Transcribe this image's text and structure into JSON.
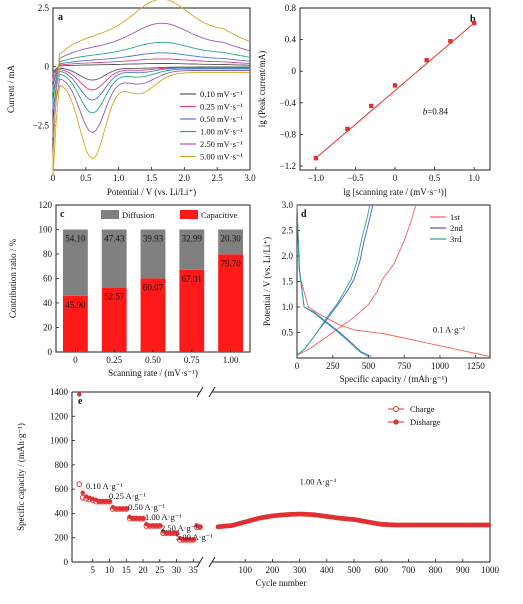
{
  "chart_data": [
    {
      "panel": "a",
      "type": "line",
      "xlabel": "Potential / V (vs. Li/Li⁺)",
      "ylabel": "Current / mA",
      "xlim": [
        0,
        3.0
      ],
      "ylim": [
        -4.4,
        2.5
      ],
      "xticks": [
        0,
        0.5,
        1.0,
        1.5,
        2.0,
        2.5,
        3.0
      ],
      "xtick_labels": [
        "0",
        "0.5",
        "1.0",
        "1.5",
        "2.0",
        "2.5",
        "3.0"
      ],
      "yticks": [
        2.5,
        0,
        -2.5
      ],
      "ytick_labels": [
        "2.5",
        "0",
        "−2.5"
      ],
      "legend_position": "lower-right",
      "series": [
        {
          "name": "0.10 mV·s⁻¹",
          "color": "#555555",
          "peak_a": 0.1,
          "peak_c": -0.55,
          "scale": 0.06
        },
        {
          "name": "0.25 mV·s⁻¹",
          "color": "#e0407a",
          "peak_a": 0.25,
          "peak_c": -0.95,
          "scale": 0.13
        },
        {
          "name": "0.50 mV·s⁻¹",
          "color": "#4a78d6",
          "peak_a": 0.45,
          "peak_c": -1.35,
          "scale": 0.22
        },
        {
          "name": "1.00 mV·s⁻¹",
          "color": "#2ca58a",
          "peak_a": 0.8,
          "peak_c": -1.85,
          "scale": 0.38
        },
        {
          "name": "2.50 mV·s⁻¹",
          "color": "#9b59b6",
          "peak_a": 1.45,
          "peak_c": -2.6,
          "scale": 0.64
        },
        {
          "name": "5.00 mV·s⁻¹",
          "color": "#d9a520",
          "peak_a": 2.25,
          "peak_c": -3.6,
          "scale": 1.0
        }
      ]
    },
    {
      "panel": "b",
      "type": "scatter",
      "xlabel": "lg [scanning rate / (mV·s⁻¹)]",
      "ylabel": "lg (Peak current/mA)",
      "xlim": [
        -1.2,
        1.2
      ],
      "ylim": [
        -1.25,
        0.8
      ],
      "xticks": [
        -1.0,
        -0.5,
        0,
        0.5,
        1.0
      ],
      "xtick_labels": [
        "−1.0",
        "−0.5",
        "0",
        "0.5",
        "1.0"
      ],
      "yticks": [
        -1.2,
        -0.8,
        -0.4,
        0,
        0.4,
        0.8
      ],
      "ytick_labels": [
        "−1.2",
        "−0.8",
        "−0.4",
        "0",
        "0.4",
        "0.8"
      ],
      "x": [
        -1.0,
        -0.6,
        -0.3,
        0.0,
        0.4,
        0.7,
        1.0
      ],
      "y": [
        -1.1,
        -0.73,
        -0.44,
        -0.18,
        0.14,
        0.38,
        0.61
      ],
      "annotation_label": "b",
      "annotation_value": "=0.84",
      "color": "#e03030"
    },
    {
      "panel": "c",
      "type": "bar",
      "xlabel": "Scanning rate / (mV·s⁻¹)",
      "ylabel": "Contribution ratio / %",
      "ylim": [
        0,
        120
      ],
      "yticks": [
        0,
        20,
        40,
        60,
        80,
        100,
        120
      ],
      "ytick_labels": [
        "0",
        "20",
        "40",
        "60",
        "80",
        "100",
        "120"
      ],
      "categories": [
        "0",
        "0.25",
        "0.50",
        "0.75",
        "1.00"
      ],
      "series": [
        {
          "name": "Capacitive",
          "color": "#ff1a1a",
          "values": [
            45.9,
            52.57,
            60.07,
            67.01,
            79.7
          ],
          "labels": [
            "45.90",
            "52.57",
            "60.07",
            "67.01",
            "79.70"
          ]
        },
        {
          "name": "Diffusion",
          "color": "#808080",
          "values": [
            54.1,
            47.43,
            39.93,
            32.99,
            20.3
          ],
          "labels": [
            "54.10",
            "47.43",
            "39.93",
            "32.99",
            "20.30"
          ]
        }
      ],
      "legend_position": "top"
    },
    {
      "panel": "d",
      "type": "line",
      "xlabel": "Specific capacity / (mAh·g⁻¹)",
      "ylabel": "Potential / V (vs. Li/Li⁺)",
      "xlim": [
        0,
        1350
      ],
      "ylim": [
        0,
        3.0
      ],
      "xticks": [
        0,
        250,
        500,
        750,
        1000,
        1250
      ],
      "xtick_labels": [
        "0",
        "250",
        "500",
        "750",
        "1000",
        "1250"
      ],
      "yticks": [
        0.5,
        1.0,
        1.5,
        2.0,
        2.5,
        3.0
      ],
      "ytick_labels": [
        "0.5",
        "1.0",
        "1.5",
        "2.0",
        "2.5",
        "3.0"
      ],
      "annotation": "0.1 A·g⁻¹",
      "legend_position": "top-right",
      "series": [
        {
          "name": "1st",
          "color": "#f06060",
          "discharge": [
            [
              0,
              3.0
            ],
            [
              20,
              1.6
            ],
            [
              80,
              1.0
            ],
            [
              180,
              0.82
            ],
            [
              300,
              0.65
            ],
            [
              400,
              0.55
            ],
            [
              600,
              0.48
            ],
            [
              900,
              0.3
            ],
            [
              1150,
              0.15
            ],
            [
              1350,
              0.03
            ]
          ],
          "charge": [
            [
              0,
              0.05
            ],
            [
              100,
              0.2
            ],
            [
              250,
              0.5
            ],
            [
              400,
              0.8
            ],
            [
              500,
              1.05
            ],
            [
              560,
              1.3
            ],
            [
              600,
              1.55
            ],
            [
              680,
              1.85
            ],
            [
              750,
              2.3
            ],
            [
              800,
              2.7
            ],
            [
              830,
              3.0
            ]
          ]
        },
        {
          "name": "2nd",
          "color": "#4a56d6",
          "discharge": [
            [
              0,
              3.0
            ],
            [
              15,
              1.8
            ],
            [
              50,
              1.0
            ],
            [
              120,
              0.9
            ],
            [
              200,
              0.72
            ],
            [
              300,
              0.5
            ],
            [
              380,
              0.3
            ],
            [
              450,
              0.12
            ],
            [
              520,
              0.03
            ]
          ],
          "charge": [
            [
              0,
              0.05
            ],
            [
              60,
              0.2
            ],
            [
              140,
              0.5
            ],
            [
              220,
              0.8
            ],
            [
              300,
              1.1
            ],
            [
              360,
              1.35
            ],
            [
              400,
              1.55
            ],
            [
              440,
              1.9
            ],
            [
              470,
              2.3
            ],
            [
              510,
              2.75
            ],
            [
              530,
              3.0
            ]
          ]
        },
        {
          "name": "3rd",
          "color": "#2ca58a",
          "discharge": [
            [
              0,
              3.0
            ],
            [
              15,
              1.75
            ],
            [
              50,
              1.0
            ],
            [
              120,
              0.88
            ],
            [
              200,
              0.7
            ],
            [
              290,
              0.5
            ],
            [
              370,
              0.3
            ],
            [
              440,
              0.12
            ],
            [
              500,
              0.03
            ]
          ],
          "charge": [
            [
              0,
              0.05
            ],
            [
              60,
              0.2
            ],
            [
              140,
              0.5
            ],
            [
              210,
              0.8
            ],
            [
              290,
              1.1
            ],
            [
              340,
              1.35
            ],
            [
              380,
              1.55
            ],
            [
              420,
              1.9
            ],
            [
              450,
              2.3
            ],
            [
              490,
              2.75
            ],
            [
              510,
              3.0
            ]
          ]
        }
      ]
    },
    {
      "panel": "e",
      "type": "scatter",
      "xlabel": "Cycle number",
      "ylabel": "Specific capacity / (mAh·g⁻¹)",
      "ylim": [
        0,
        1400
      ],
      "yticks": [
        0,
        200,
        400,
        600,
        800,
        1000,
        1200,
        1400
      ],
      "ytick_labels": [
        "0",
        "200",
        "400",
        "600",
        "800",
        "1000",
        "1200",
        "1400"
      ],
      "xticks_left": [
        5,
        10,
        15,
        20,
        25,
        30,
        35
      ],
      "xticks_right": [
        100,
        200,
        300,
        400,
        500,
        600,
        700,
        800,
        900,
        1000
      ],
      "left_xlim": [
        0,
        37
      ],
      "right_xlim": [
        0,
        1000
      ],
      "rate_labels": [
        "0.10 A·g⁻¹",
        "0.25 A·g⁻¹",
        "0.50 A·g⁻¹",
        "1.00 A·g⁻¹",
        "2.50 A·g⁻¹",
        "5.00 A·g⁻¹"
      ],
      "long_cycle_label": "1.00 A·g⁻¹",
      "legend_position": "top-right",
      "series": [
        {
          "name": "Charge",
          "color": "#e03030",
          "marker": "open-circle"
        },
        {
          "name": "Disharge",
          "color": "#e03030",
          "marker": "filled-circle"
        }
      ],
      "rate_steps": [
        {
          "cycles": [
            1,
            5
          ],
          "discharge": [
            1380,
            570,
            540,
            530,
            520
          ],
          "charge": [
            640,
            530,
            520,
            515,
            510
          ]
        },
        {
          "cycles": [
            6,
            10
          ],
          "value": 500
        },
        {
          "cycles": [
            11,
            15
          ],
          "value": 440
        },
        {
          "cycles": [
            16,
            20
          ],
          "value": 360
        },
        {
          "cycles": [
            21,
            25
          ],
          "value": 300
        },
        {
          "cycles": [
            26,
            30
          ],
          "value": 240
        },
        {
          "cycles": [
            31,
            35
          ],
          "value": 185
        },
        {
          "cycles": [
            36,
            37
          ],
          "value": 290
        }
      ],
      "long_cycle": [
        [
          0,
          290
        ],
        [
          50,
          300
        ],
        [
          100,
          330
        ],
        [
          150,
          360
        ],
        [
          200,
          380
        ],
        [
          250,
          390
        ],
        [
          300,
          395
        ],
        [
          350,
          390
        ],
        [
          400,
          375
        ],
        [
          450,
          360
        ],
        [
          500,
          350
        ],
        [
          550,
          330
        ],
        [
          600,
          310
        ],
        [
          650,
          305
        ],
        [
          700,
          305
        ],
        [
          800,
          305
        ],
        [
          900,
          305
        ],
        [
          1000,
          305
        ]
      ]
    }
  ]
}
